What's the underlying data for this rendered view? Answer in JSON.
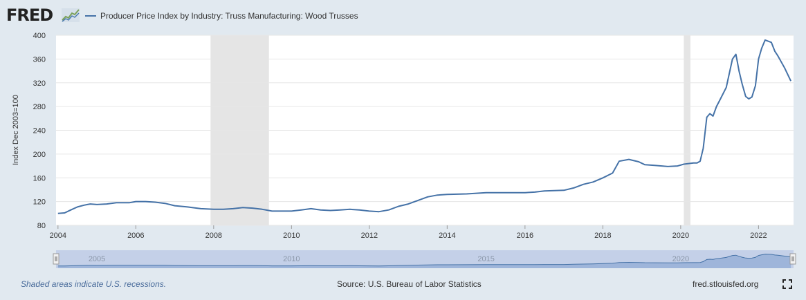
{
  "header": {
    "logo_text": "FRED",
    "legend_label": "Producer Price Index by Industry: Truss Manufacturing: Wood Trusses",
    "series_color": "#4572a7"
  },
  "footer": {
    "recession_note": "Shaded areas indicate U.S. recessions.",
    "source": "Source: U.S. Bureau of Labor Statistics",
    "site": "fred.stlouisfed.org"
  },
  "chart_data": {
    "type": "line",
    "title": "",
    "xlabel": "",
    "ylabel": "Index Dec 2003=100",
    "ylim": [
      80,
      400
    ],
    "xlim": [
      2003.95,
      2022.9
    ],
    "yticks": [
      80,
      120,
      160,
      200,
      240,
      280,
      320,
      360,
      400
    ],
    "xticks": [
      2004,
      2006,
      2008,
      2010,
      2012,
      2014,
      2016,
      2018,
      2020,
      2022
    ],
    "navigator_ticks": [
      2005,
      2010,
      2015,
      2020
    ],
    "grid": true,
    "recessions": [
      [
        2007.92,
        2009.42
      ],
      [
        2020.08,
        2020.25
      ]
    ],
    "series": [
      {
        "name": "Producer Price Index by Industry: Truss Manufacturing: Wood Trusses",
        "x": [
          2004.0,
          2004.17,
          2004.33,
          2004.5,
          2004.67,
          2004.83,
          2005.0,
          2005.25,
          2005.5,
          2005.83,
          2006.0,
          2006.25,
          2006.5,
          2006.75,
          2007.0,
          2007.33,
          2007.67,
          2008.0,
          2008.25,
          2008.5,
          2008.75,
          2009.0,
          2009.25,
          2009.5,
          2009.75,
          2010.0,
          2010.25,
          2010.5,
          2010.75,
          2011.0,
          2011.25,
          2011.5,
          2011.75,
          2012.0,
          2012.25,
          2012.5,
          2012.75,
          2013.0,
          2013.25,
          2013.5,
          2013.75,
          2014.0,
          2014.5,
          2015.0,
          2015.5,
          2016.0,
          2016.25,
          2016.5,
          2017.0,
          2017.25,
          2017.5,
          2017.75,
          2018.0,
          2018.25,
          2018.42,
          2018.67,
          2018.92,
          2019.08,
          2019.33,
          2019.67,
          2019.92,
          2020.08,
          2020.33,
          2020.42,
          2020.5,
          2020.58,
          2020.67,
          2020.75,
          2020.83,
          2020.92,
          2021.0,
          2021.17,
          2021.33,
          2021.42,
          2021.5,
          2021.58,
          2021.67,
          2021.75,
          2021.83,
          2021.92,
          2022.0,
          2022.08,
          2022.17,
          2022.33,
          2022.42,
          2022.5,
          2022.67,
          2022.83
        ],
        "values": [
          100,
          101,
          106,
          111,
          114,
          116,
          115,
          116,
          118,
          118,
          120,
          120,
          119,
          117,
          113,
          111,
          108,
          107,
          107,
          108,
          110,
          109,
          107,
          104,
          104,
          104,
          106,
          108,
          106,
          105,
          106,
          107,
          106,
          104,
          103,
          106,
          112,
          116,
          122,
          128,
          131,
          132,
          133,
          135,
          135,
          135,
          136,
          138,
          139,
          143,
          149,
          153,
          160,
          168,
          188,
          191,
          187,
          182,
          181,
          179,
          180,
          183,
          185,
          185,
          188,
          210,
          262,
          268,
          264,
          280,
          290,
          312,
          360,
          368,
          340,
          318,
          297,
          293,
          296,
          315,
          360,
          378,
          392,
          388,
          373,
          365,
          345,
          323
        ]
      }
    ]
  }
}
